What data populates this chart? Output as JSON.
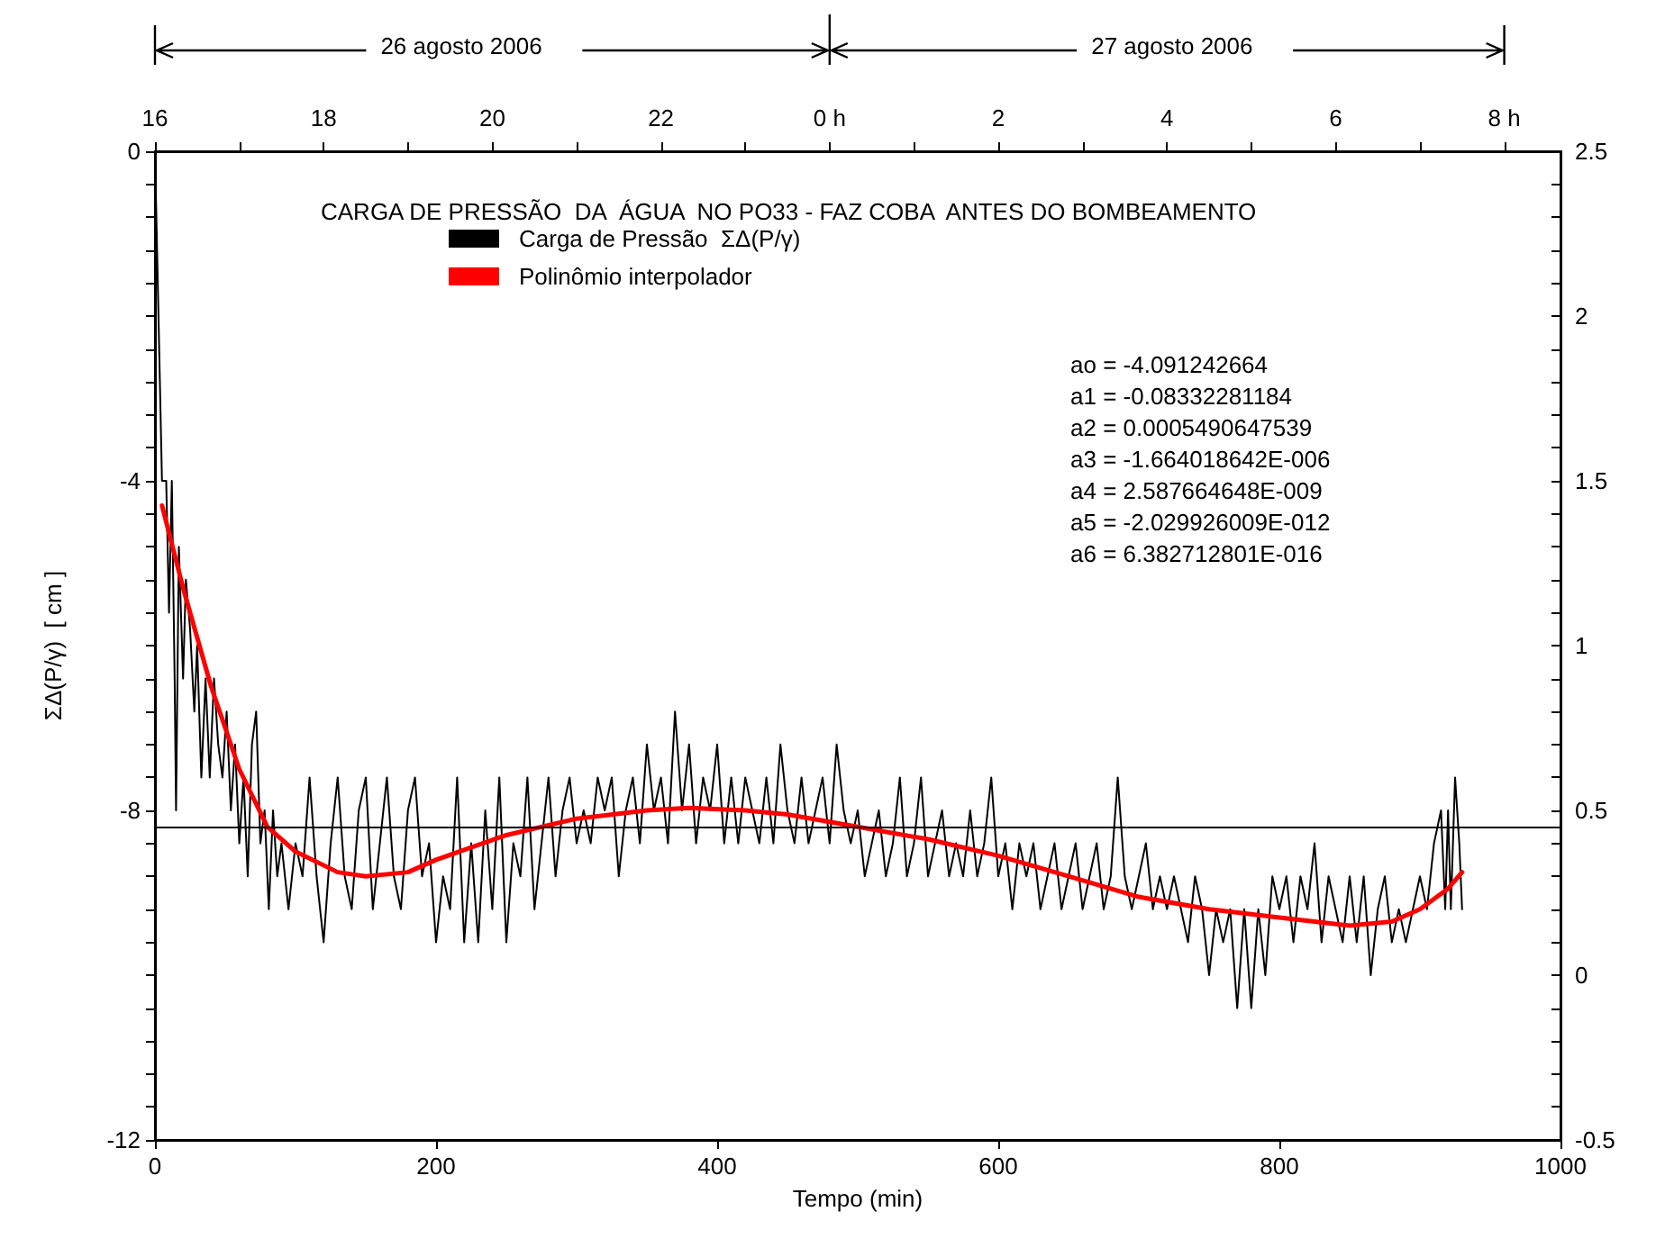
{
  "chart_data": {
    "type": "line",
    "title": "CARGA DE PRESSÃO  DA  ÁGUA  NO PO33 - FAZ COBA  ANTES DO BOMBEAMENTO",
    "xlabel": "Tempo (min)",
    "ylabel": "ΣΔ(P/γ)  [ cm ]",
    "annotations": [
      "26 agosto 2006",
      "27 agosto 2006",
      "ao = -4.091242664",
      "a1 = -0.08332281184",
      "a2 = 0.0005490647539",
      "a3 = -1.664018642E-006",
      "a4 = 2.587664648E-009",
      "a5 = -2.029926009E-012",
      "a6 = 6.382712801E-016"
    ],
    "series": [
      {
        "name": "Carga de Pressão  ΣΔ(P/γ)",
        "color": "#000000",
        "x": [
          0,
          3,
          5,
          8,
          10,
          12,
          14,
          15,
          17,
          20,
          22,
          25,
          28,
          30,
          33,
          36,
          39,
          42,
          45,
          48,
          51,
          54,
          57,
          60,
          63,
          66,
          69,
          72,
          75,
          78,
          81,
          84,
          87,
          90,
          95,
          100,
          105,
          110,
          115,
          120,
          125,
          130,
          135,
          140,
          145,
          150,
          155,
          160,
          165,
          170,
          175,
          180,
          185,
          190,
          195,
          200,
          205,
          210,
          215,
          220,
          225,
          230,
          235,
          240,
          245,
          250,
          255,
          260,
          265,
          270,
          275,
          280,
          285,
          290,
          295,
          300,
          305,
          310,
          315,
          320,
          325,
          330,
          335,
          340,
          345,
          350,
          355,
          360,
          365,
          370,
          375,
          380,
          385,
          390,
          395,
          400,
          405,
          410,
          415,
          420,
          425,
          430,
          435,
          440,
          445,
          450,
          455,
          460,
          465,
          470,
          475,
          480,
          485,
          490,
          495,
          500,
          505,
          510,
          515,
          520,
          525,
          530,
          535,
          540,
          545,
          550,
          555,
          560,
          565,
          570,
          575,
          580,
          585,
          590,
          595,
          600,
          605,
          610,
          615,
          620,
          625,
          630,
          635,
          640,
          645,
          650,
          655,
          660,
          665,
          670,
          675,
          680,
          685,
          690,
          695,
          700,
          705,
          710,
          715,
          720,
          725,
          730,
          735,
          740,
          745,
          750,
          755,
          760,
          765,
          770,
          775,
          780,
          785,
          790,
          795,
          800,
          805,
          810,
          815,
          820,
          825,
          830,
          835,
          840,
          845,
          850,
          855,
          860,
          865,
          870,
          875,
          880,
          885,
          890,
          895,
          900,
          905,
          910,
          915,
          918,
          920,
          922,
          925,
          928,
          930
        ],
        "values": [
          0,
          -2.4,
          -4,
          -4,
          -5.6,
          -4,
          -6.4,
          -8,
          -4.8,
          -6.4,
          -5.2,
          -5.8,
          -6.8,
          -6,
          -7.6,
          -6.4,
          -7.6,
          -6.4,
          -7.2,
          -7.6,
          -6.8,
          -8,
          -7.2,
          -8.4,
          -7.6,
          -8.8,
          -7.2,
          -6.8,
          -8.4,
          -8,
          -9.2,
          -8,
          -8.8,
          -8.4,
          -9.2,
          -8.4,
          -8.8,
          -7.6,
          -8.8,
          -9.6,
          -8.4,
          -7.6,
          -8.8,
          -9.2,
          -8,
          -7.6,
          -9.2,
          -8.4,
          -7.6,
          -8.8,
          -9.2,
          -8,
          -7.6,
          -8.8,
          -8.4,
          -9.6,
          -8.8,
          -9.2,
          -7.6,
          -9.6,
          -8.4,
          -9.6,
          -8,
          -9.2,
          -7.6,
          -9.6,
          -8.4,
          -8.8,
          -7.6,
          -9.2,
          -8.4,
          -7.6,
          -8.8,
          -8,
          -7.6,
          -8.4,
          -8,
          -8.4,
          -7.6,
          -8,
          -7.6,
          -8.8,
          -8,
          -7.6,
          -8.4,
          -7.2,
          -8,
          -7.6,
          -8.4,
          -6.8,
          -8,
          -7.2,
          -8.4,
          -7.6,
          -8,
          -7.2,
          -8.4,
          -7.6,
          -8.4,
          -7.6,
          -8,
          -8.4,
          -7.6,
          -8.4,
          -7.2,
          -8,
          -8.4,
          -7.6,
          -8.4,
          -8,
          -7.6,
          -8.4,
          -7.2,
          -8,
          -8.4,
          -8,
          -8.8,
          -8.4,
          -8,
          -8.8,
          -8.4,
          -7.6,
          -8.8,
          -8.4,
          -7.6,
          -8.8,
          -8.4,
          -8,
          -8.8,
          -8.4,
          -8.8,
          -8,
          -8.8,
          -8.4,
          -7.6,
          -8.8,
          -8.4,
          -9.2,
          -8.4,
          -8.8,
          -8.4,
          -9.2,
          -8.8,
          -8.4,
          -9.2,
          -8.8,
          -8.4,
          -9.2,
          -8.8,
          -8.4,
          -9.2,
          -8.8,
          -7.6,
          -8.8,
          -9.2,
          -8.8,
          -8.4,
          -9.2,
          -8.8,
          -9.2,
          -8.8,
          -9.2,
          -9.6,
          -8.8,
          -9.2,
          -10,
          -9.2,
          -9.6,
          -9.2,
          -10.4,
          -9.2,
          -10.4,
          -9.2,
          -10,
          -8.8,
          -9.2,
          -8.8,
          -9.6,
          -8.8,
          -9.2,
          -8.4,
          -9.6,
          -8.8,
          -9.2,
          -9.6,
          -8.8,
          -9.6,
          -8.8,
          -10,
          -9.2,
          -8.8,
          -9.6,
          -9.2,
          -9.6,
          -9.2,
          -8.8,
          -9.2,
          -8.4,
          -8,
          -9.2,
          -8,
          -9.2,
          -7.6,
          -8.4,
          -9.2
        ]
      },
      {
        "name": "Polinômio interpolador",
        "color": "#ff0000",
        "x": [
          5,
          20,
          40,
          60,
          80,
          100,
          130,
          150,
          180,
          200,
          250,
          300,
          350,
          380,
          420,
          450,
          500,
          550,
          600,
          650,
          700,
          750,
          800,
          850,
          880,
          900,
          920,
          930
        ],
        "values": [
          -4.3,
          -5.3,
          -6.5,
          -7.5,
          -8.2,
          -8.5,
          -8.75,
          -8.8,
          -8.75,
          -8.6,
          -8.3,
          -8.1,
          -8,
          -7.97,
          -8,
          -8.05,
          -8.2,
          -8.35,
          -8.55,
          -8.8,
          -9.05,
          -9.2,
          -9.3,
          -9.4,
          -9.35,
          -9.2,
          -8.95,
          -8.75
        ]
      }
    ],
    "xlim": [
      0,
      1000
    ],
    "xticks": [
      0,
      200,
      400,
      600,
      800,
      1000
    ],
    "x2lim": [
      "2006-08-26T16:00",
      "2006-08-27T08:40"
    ],
    "x2ticks": [
      {
        "value": "2006-08-26T16:00",
        "label": "16"
      },
      {
        "value": "2006-08-26T17:00",
        "label": null
      },
      {
        "value": "2006-08-26T18:00",
        "label": "18"
      },
      {
        "value": "2006-08-26T19:00",
        "label": null
      },
      {
        "value": "2006-08-26T20:00",
        "label": "20"
      },
      {
        "value": "2006-08-26T21:00",
        "label": null
      },
      {
        "value": "2006-08-26T22:00",
        "label": "22"
      },
      {
        "value": "2006-08-26T23:00",
        "label": null
      },
      {
        "value": "2006-08-27T00:00",
        "label": "0 h"
      },
      {
        "value": "2006-08-27T01:00",
        "label": null
      },
      {
        "value": "2006-08-27T02:00",
        "label": "2"
      },
      {
        "value": "2006-08-27T03:00",
        "label": null
      },
      {
        "value": "2006-08-27T04:00",
        "label": "4"
      },
      {
        "value": "2006-08-27T05:00",
        "label": null
      },
      {
        "value": "2006-08-27T06:00",
        "label": "6"
      },
      {
        "value": "2006-08-27T07:00",
        "label": null
      },
      {
        "value": "2006-08-27T08:00",
        "label": "8 h"
      }
    ],
    "ylim": [
      -12,
      0
    ],
    "yticks": [
      0,
      {
        "value": -0.4,
        "label": null
      },
      {
        "value": -0.8,
        "label": null
      },
      {
        "value": -1.2,
        "label": null
      },
      {
        "value": -1.6,
        "label": null
      },
      {
        "value": -2,
        "label": null
      },
      {
        "value": -2.4,
        "label": null
      },
      {
        "value": -2.8,
        "label": null
      },
      {
        "value": -3.2,
        "label": null
      },
      {
        "value": -3.6,
        "label": null
      },
      -4,
      {
        "value": -4.4,
        "label": null
      },
      {
        "value": -4.8,
        "label": null
      },
      {
        "value": -5.2,
        "label": null
      },
      {
        "value": -5.6,
        "label": null
      },
      {
        "value": -6,
        "label": null
      },
      {
        "value": -6.4,
        "label": null
      },
      {
        "value": -6.8,
        "label": null
      },
      {
        "value": -7.2,
        "label": null
      },
      {
        "value": -7.6,
        "label": null
      },
      -8,
      {
        "value": -8.4,
        "label": null
      },
      {
        "value": -8.8,
        "label": null
      },
      {
        "value": -9.2,
        "label": null
      },
      {
        "value": -9.6,
        "label": null
      },
      {
        "value": -10,
        "label": null
      },
      {
        "value": -10.4,
        "label": null
      },
      {
        "value": -10.8,
        "label": null
      },
      {
        "value": -11.2,
        "label": null
      },
      {
        "value": -11.6,
        "label": null
      },
      -12
    ],
    "y2lim": [
      -0.5,
      2.5
    ],
    "y2ticks": [
      2.5,
      {
        "value": 2.4,
        "label": null
      },
      {
        "value": 2.3,
        "label": null
      },
      {
        "value": 2.2,
        "label": null
      },
      {
        "value": 2.1,
        "label": null
      },
      2,
      {
        "value": 1.9,
        "label": null
      },
      {
        "value": 1.8,
        "label": null
      },
      {
        "value": 1.7,
        "label": null
      },
      {
        "value": 1.6,
        "label": null
      },
      1.5,
      {
        "value": 1.4,
        "label": null
      },
      {
        "value": 1.3,
        "label": null
      },
      {
        "value": 1.2,
        "label": null
      },
      {
        "value": 1.1,
        "label": null
      },
      1,
      {
        "value": 0.9,
        "label": null
      },
      {
        "value": 0.8,
        "label": null
      },
      {
        "value": 0.7,
        "label": null
      },
      {
        "value": 0.6,
        "label": null
      },
      0.5,
      {
        "value": 0.4,
        "label": null
      },
      {
        "value": 0.3,
        "label": null
      },
      {
        "value": 0.2,
        "label": null
      },
      {
        "value": 0.1,
        "label": null
      },
      0,
      {
        "value": -0.1,
        "label": null
      },
      {
        "value": -0.2,
        "label": null
      },
      {
        "value": -0.3,
        "label": null
      },
      {
        "value": -0.4,
        "label": null
      },
      -0.5
    ],
    "ref_lines": [
      {
        "axis": "y2",
        "value": 0.45,
        "color": "#000000"
      }
    ],
    "legend": "top left",
    "grid": false,
    "marker": "none",
    "line_style": "solid"
  }
}
